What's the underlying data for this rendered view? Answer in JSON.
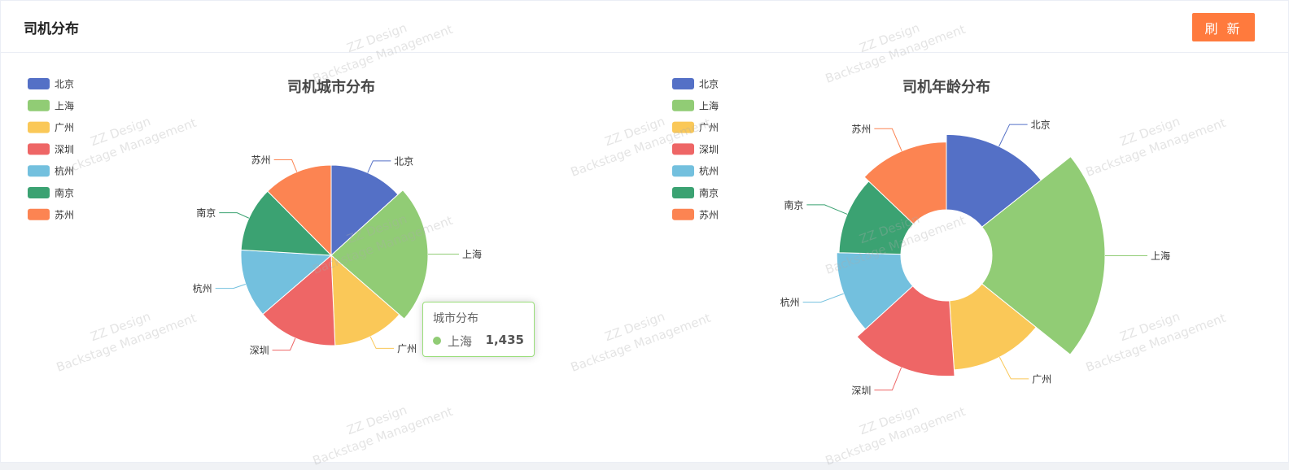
{
  "header": {
    "title": "司机分布",
    "refresh_label": "刷 新"
  },
  "watermark": {
    "line1": "ZZ Design",
    "line2": "Backstage Management"
  },
  "colors": [
    "#5470c6",
    "#91cc75",
    "#fac858",
    "#ee6666",
    "#73c0de",
    "#3ba272",
    "#fc8452"
  ],
  "tooltip": {
    "title": "城市分布",
    "name": "上海",
    "value": "1,435"
  },
  "chart_data": [
    {
      "type": "pie",
      "title": "司机城市分布",
      "legend_position": "top-left",
      "categories": [
        "北京",
        "上海",
        "广州",
        "深圳",
        "杭州",
        "南京",
        "苏州"
      ],
      "values": [
        820,
        1435,
        800,
        890,
        760,
        720,
        770
      ]
    },
    {
      "type": "pie",
      "variant": "rose",
      "title": "司机年龄分布",
      "legend_position": "top-left",
      "categories": [
        "北京",
        "上海",
        "广州",
        "深圳",
        "杭州",
        "南京",
        "苏州"
      ],
      "values": [
        100,
        150,
        92,
        100,
        85,
        82,
        90
      ]
    }
  ]
}
